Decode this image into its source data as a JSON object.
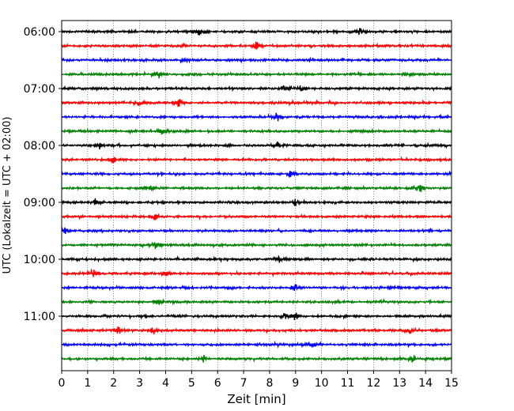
{
  "chart_data": {
    "type": "line",
    "chart_kind": "seismogram helicorder",
    "xlabel": "Zeit  [min]",
    "ylabel": "UTC (Lokalzeit = UTC + 02:00)",
    "xlim": [
      0,
      15
    ],
    "x_ticks": [
      "0",
      "1",
      "2",
      "3",
      "4",
      "5",
      "6",
      "7",
      "8",
      "9",
      "10",
      "11",
      "12",
      "13",
      "14",
      "15"
    ],
    "y_tick_labels": [
      "06:00",
      "07:00",
      "08:00",
      "09:00",
      "10:00",
      "11:00"
    ],
    "row_start_times": [
      "06:00",
      "06:15",
      "06:30",
      "06:45",
      "07:00",
      "07:15",
      "07:30",
      "07:45",
      "08:00",
      "08:15",
      "08:30",
      "08:45",
      "09:00",
      "09:15",
      "09:30",
      "09:45",
      "10:00",
      "10:15",
      "10:30",
      "10:45",
      "11:00",
      "11:15",
      "11:30",
      "11:45"
    ],
    "row_minutes": 15,
    "grid": "vertical dotted lines at each minute",
    "trace_colors": [
      "#000000",
      "#ff0000",
      "#0000ff",
      "#008000"
    ],
    "spike_minutes": [
      [
        5.3,
        11.5
      ],
      [
        7.5
      ],
      [
        4.8
      ],
      [
        3.7,
        13.3
      ],
      [
        8.6,
        9.2
      ],
      [
        3.0,
        4.5
      ],
      [
        8.3
      ],
      [
        3.9
      ],
      [
        1.5,
        8.3
      ],
      [
        2.0
      ],
      [
        8.8
      ],
      [
        3.4,
        13.8
      ],
      [
        1.3,
        9.0
      ],
      [
        3.6
      ],
      [
        0.1
      ],
      [
        3.6
      ],
      [
        8.4
      ],
      [
        1.2,
        4.0
      ],
      [
        9.0
      ],
      [
        3.7
      ],
      [
        8.6,
        9.0
      ],
      [
        2.2,
        3.5,
        13.4
      ],
      [
        9.6
      ],
      [
        5.5,
        13.5
      ]
    ]
  }
}
